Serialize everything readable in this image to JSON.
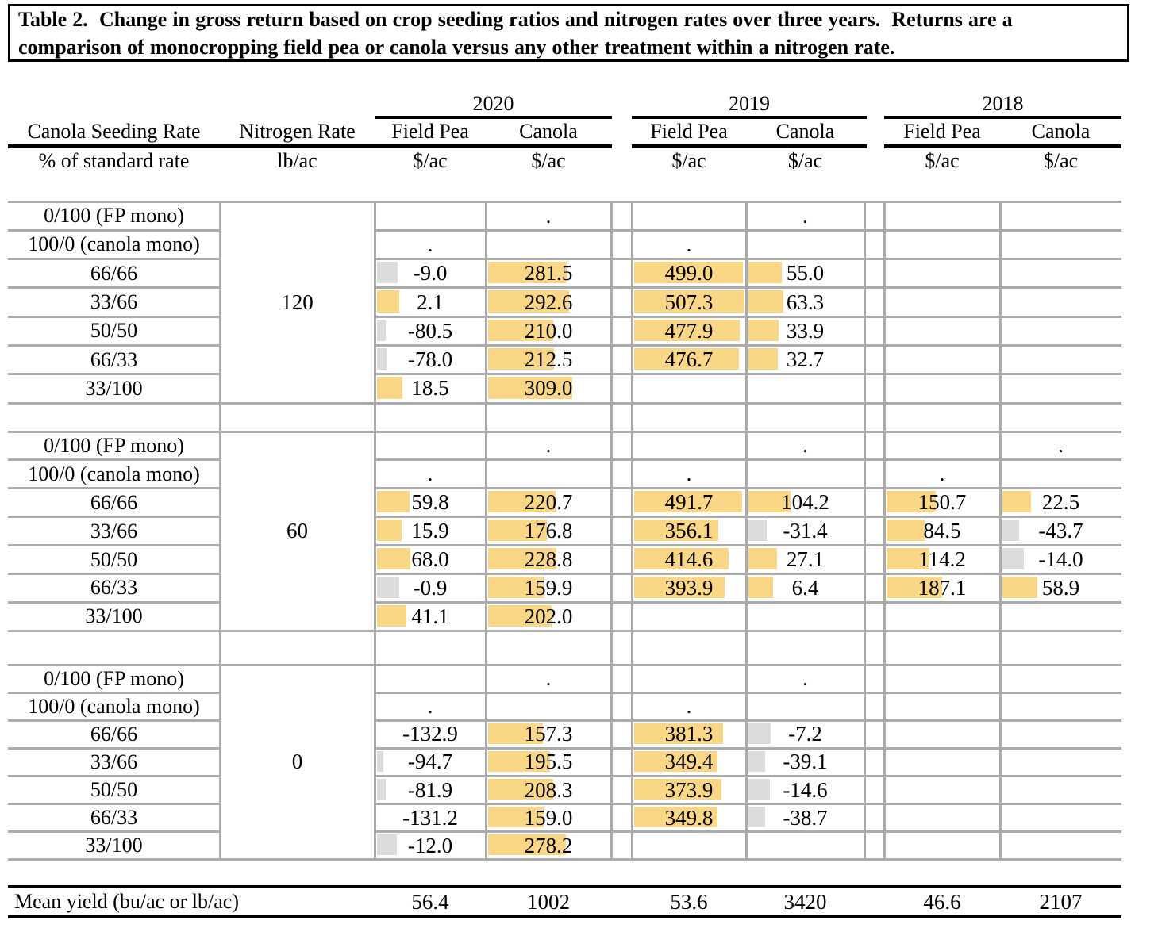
{
  "title": {
    "full": "Table 2.  Change in gross return based on crop seeding ratios and nitrogen rates over three years.  Returns are a comparison of monocropping field pea or canola versus any other treatment within a nitrogen rate.",
    "lines": [
      "Table 2.  Change in gross return based on crop seeding ratios and nitrogen rates over three years.  Returns are a",
      "comparison of monocropping field pea or canola versus any other treatment within a nitrogen rate."
    ]
  },
  "header": {
    "seeding_col": {
      "label": "Canola Seeding Rate",
      "unit": "% of standard rate"
    },
    "nitrogen_col": {
      "label": "Nitrogen Rate",
      "unit": "lb/ac"
    },
    "years": [
      {
        "label": "2020",
        "field_pea": "Field Pea",
        "canola": "Canola",
        "unit": "$/ac"
      },
      {
        "label": "2019",
        "field_pea": "Field Pea",
        "canola": "Canola",
        "unit": "$/ac"
      },
      {
        "label": "2018",
        "field_pea": "Field Pea",
        "canola": "Canola",
        "unit": "$/ac"
      }
    ]
  },
  "body": {
    "groups": [
      {
        "nitrogen_rate": "120",
        "rows": [
          {
            "seeding_rate": "0/100 (FP mono)",
            "cells": [
              "",
              ".",
              "",
              ".",
              "",
              ""
            ]
          },
          {
            "seeding_rate": "100/0 (canola mono)",
            "cells": [
              ".",
              "",
              ".",
              "",
              "",
              ""
            ]
          },
          {
            "seeding_rate": "66/66",
            "cells": [
              "-9.0",
              "281.5",
              "499.0",
              "55.0",
              "",
              ""
            ]
          },
          {
            "seeding_rate": "33/66",
            "cells": [
              "2.1",
              "292.6",
              "507.3",
              "63.3",
              "",
              ""
            ]
          },
          {
            "seeding_rate": "50/50",
            "cells": [
              "-80.5",
              "210.0",
              "477.9",
              "33.9",
              "",
              ""
            ]
          },
          {
            "seeding_rate": "66/33",
            "cells": [
              "-78.0",
              "212.5",
              "476.7",
              "32.7",
              "",
              ""
            ]
          },
          {
            "seeding_rate": "33/100",
            "cells": [
              "18.5",
              "309.0",
              "",
              "",
              "",
              ""
            ]
          }
        ]
      },
      {
        "nitrogen_rate": "60",
        "rows": [
          {
            "seeding_rate": "0/100 (FP mono)",
            "cells": [
              "",
              ".",
              "",
              ".",
              "",
              "."
            ]
          },
          {
            "seeding_rate": "100/0 (canola mono)",
            "cells": [
              ".",
              "",
              ".",
              "",
              ".",
              ""
            ]
          },
          {
            "seeding_rate": "66/66",
            "cells": [
              "59.8",
              "220.7",
              "491.7",
              "104.2",
              "150.7",
              "22.5"
            ]
          },
          {
            "seeding_rate": "33/66",
            "cells": [
              "15.9",
              "176.8",
              "356.1",
              "-31.4",
              "84.5",
              "-43.7"
            ]
          },
          {
            "seeding_rate": "50/50",
            "cells": [
              "68.0",
              "228.8",
              "414.6",
              "27.1",
              "114.2",
              "-14.0"
            ]
          },
          {
            "seeding_rate": "66/33",
            "cells": [
              "-0.9",
              "159.9",
              "393.9",
              "6.4",
              "187.1",
              "58.9"
            ]
          },
          {
            "seeding_rate": "33/100",
            "cells": [
              "41.1",
              "202.0",
              "",
              "",
              "",
              ""
            ]
          }
        ]
      },
      {
        "nitrogen_rate": "0",
        "rows": [
          {
            "seeding_rate": "0/100 (FP mono)",
            "cells": [
              "",
              ".",
              "",
              ".",
              "",
              ""
            ]
          },
          {
            "seeding_rate": "100/0 (canola mono)",
            "cells": [
              ".",
              "",
              ".",
              "",
              "",
              ""
            ]
          },
          {
            "seeding_rate": "66/66",
            "cells": [
              "-132.9",
              "157.3",
              "381.3",
              "-7.2",
              "",
              ""
            ]
          },
          {
            "seeding_rate": "33/66",
            "cells": [
              "-94.7",
              "195.5",
              "349.4",
              "-39.1",
              "",
              ""
            ]
          },
          {
            "seeding_rate": "50/50",
            "cells": [
              "-81.9",
              "208.3",
              "373.9",
              "-14.6",
              "",
              ""
            ]
          },
          {
            "seeding_rate": "66/33",
            "cells": [
              "-131.2",
              "159.0",
              "349.8",
              "-38.7",
              "",
              ""
            ]
          },
          {
            "seeding_rate": "33/100",
            "cells": [
              "-12.0",
              "278.2",
              "",
              "",
              "",
              ""
            ]
          }
        ]
      }
    ]
  },
  "footer": {
    "label": "Mean yield (bu/ac or lb/ac)",
    "values": [
      "56.4",
      "1002",
      "53.6",
      "3420",
      "46.6",
      "2107"
    ]
  },
  "style": {
    "bar_positive_color": "#fad687",
    "bar_negative_color": "#dcdcdc",
    "gridline_color": "#ababab",
    "rule_color": "#000000"
  },
  "chart_data": {
    "type": "table",
    "title": "Table 2. Change in gross return based on crop seeding ratios and nitrogen rates over three years. Returns are a comparison of monocropping field pea or canola versus any other treatment within a nitrogen rate.",
    "row_dimension": "Canola Seeding Rate (% of standard rate)",
    "group_dimension": "Nitrogen Rate (lb/ac)",
    "columns": [
      "2020 Field Pea ($/ac)",
      "2020 Canola ($/ac)",
      "2019 Field Pea ($/ac)",
      "2019 Canola ($/ac)",
      "2018 Field Pea ($/ac)",
      "2018 Canola ($/ac)"
    ],
    "seeding_rates": [
      "0/100 (FP mono)",
      "100/0 (canola mono)",
      "66/66",
      "33/66",
      "50/50",
      "66/33",
      "33/100"
    ],
    "groups": [
      {
        "nitrogen_rate": 120,
        "values": [
          [
            null,
            null,
            null,
            null,
            null,
            null
          ],
          [
            null,
            null,
            null,
            null,
            null,
            null
          ],
          [
            -9.0,
            281.5,
            499.0,
            55.0,
            null,
            null
          ],
          [
            2.1,
            292.6,
            507.3,
            63.3,
            null,
            null
          ],
          [
            -80.5,
            210.0,
            477.9,
            33.9,
            null,
            null
          ],
          [
            -78.0,
            212.5,
            476.7,
            32.7,
            null,
            null
          ],
          [
            18.5,
            309.0,
            null,
            null,
            null,
            null
          ]
        ]
      },
      {
        "nitrogen_rate": 60,
        "values": [
          [
            null,
            null,
            null,
            null,
            null,
            null
          ],
          [
            null,
            null,
            null,
            null,
            null,
            null
          ],
          [
            59.8,
            220.7,
            491.7,
            104.2,
            150.7,
            22.5
          ],
          [
            15.9,
            176.8,
            356.1,
            -31.4,
            84.5,
            -43.7
          ],
          [
            68.0,
            228.8,
            414.6,
            27.1,
            114.2,
            -14.0
          ],
          [
            -0.9,
            159.9,
            393.9,
            6.4,
            187.1,
            58.9
          ],
          [
            41.1,
            202.0,
            null,
            null,
            null,
            null
          ]
        ]
      },
      {
        "nitrogen_rate": 0,
        "values": [
          [
            null,
            null,
            null,
            null,
            null,
            null
          ],
          [
            null,
            null,
            null,
            null,
            null,
            null
          ],
          [
            -132.9,
            157.3,
            381.3,
            -7.2,
            null,
            null
          ],
          [
            -94.7,
            195.5,
            349.4,
            -39.1,
            null,
            null
          ],
          [
            -81.9,
            208.3,
            373.9,
            -14.6,
            null,
            null
          ],
          [
            -131.2,
            159.0,
            349.8,
            -38.7,
            null,
            null
          ],
          [
            -12.0,
            278.2,
            null,
            null,
            null,
            null
          ]
        ]
      }
    ],
    "mean_yield": {
      "label": "Mean yield (bu/ac or lb/ac)",
      "values": [
        56.4,
        1002,
        53.6,
        3420,
        46.6,
        2107
      ]
    },
    "data_bars": {
      "description": "in-cell data bars; bar length is proportional to (value - min) / (max - min) across all value cells",
      "min": -132.9,
      "max": 507.3,
      "positive_color": "#fad687",
      "negative_color": "#dcdcdc"
    }
  }
}
